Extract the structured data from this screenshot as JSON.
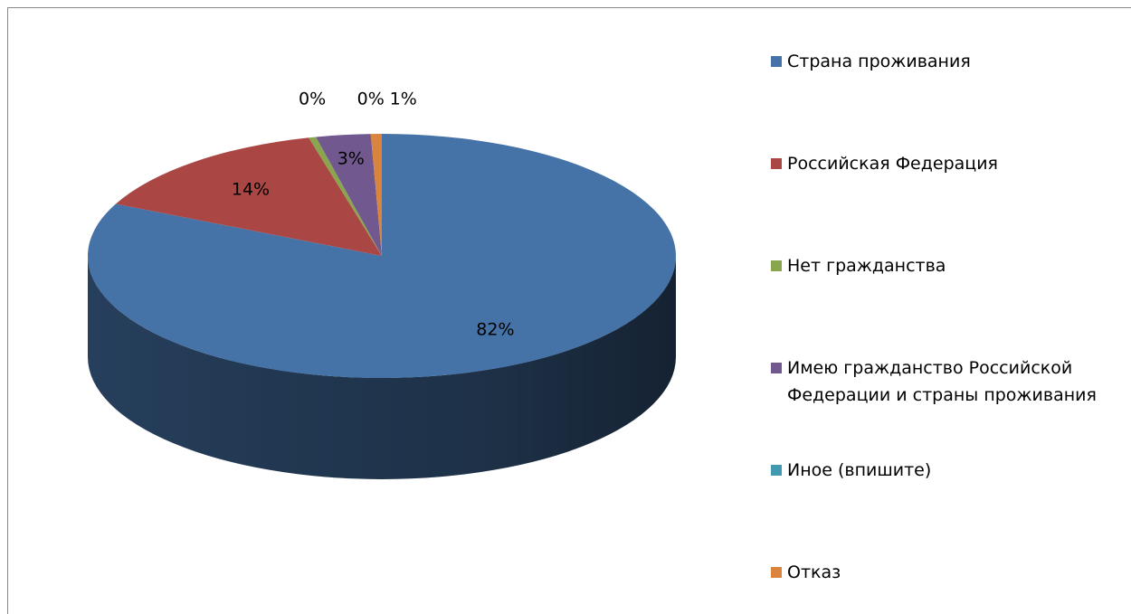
{
  "chart_data": {
    "type": "pie3d",
    "categories": [
      "Страна проживания",
      "Российская Федерация",
      "Нет гражданства",
      "Имею гражданство Российской Федерации и страны проживания",
      "Иное (впишите)",
      "Отказ"
    ],
    "values": [
      82,
      14,
      0.4,
      3,
      0,
      0.6
    ],
    "value_labels": [
      "82%",
      "14%",
      "0%",
      "3%",
      "0%",
      "1%"
    ],
    "colors": [
      "#4572a7",
      "#aa4643",
      "#89a54e",
      "#71588f",
      "#4198af",
      "#db843d"
    ],
    "legend": "right"
  }
}
